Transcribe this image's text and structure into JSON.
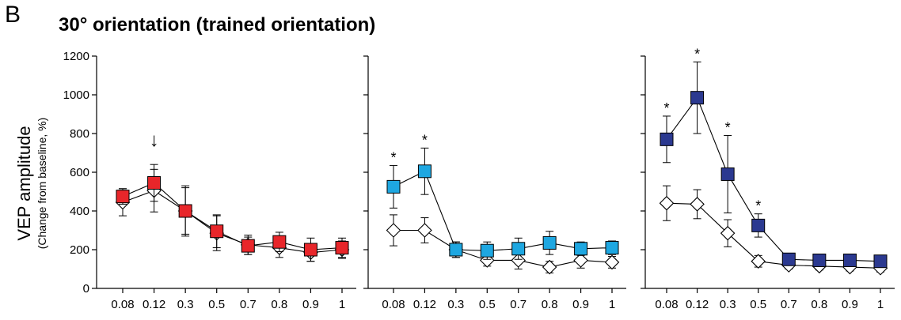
{
  "figure": {
    "panel_letter": "B",
    "title": "30° orientation (trained orientation)",
    "ylabel_main": "VEP amplitude",
    "ylabel_sub": "(Change from baseline, %)"
  },
  "chart_data": [
    {
      "type": "line",
      "title": "30° orientation (trained orientation)",
      "xlabel": "",
      "ylabel": "VEP amplitude (Change from baseline, %)",
      "categories": [
        "0.08",
        "0.12",
        "0.3",
        "0.5",
        "0.7",
        "0.8",
        "0.9",
        "1"
      ],
      "ylim": [
        0,
        1200
      ],
      "yticks": [
        0,
        200,
        400,
        600,
        800,
        1000,
        1200
      ],
      "grid": false,
      "legend": "none",
      "annotations": [
        {
          "text": "↓",
          "category": "0.12"
        }
      ],
      "series": [
        {
          "marker": "diamond",
          "color": "#ffffff",
          "values": [
            445,
            505,
            400,
            285,
            225,
            210,
            185,
            200
          ],
          "errors": [
            70,
            110,
            130,
            90,
            50,
            50,
            45,
            45
          ],
          "significance": []
        },
        {
          "marker": "square",
          "color": "#e8262a",
          "values": [
            475,
            545,
            400,
            295,
            220,
            240,
            200,
            210
          ],
          "errors": [
            40,
            95,
            120,
            85,
            45,
            50,
            60,
            50
          ],
          "significance": []
        }
      ]
    },
    {
      "type": "line",
      "title": "",
      "xlabel": "",
      "ylabel": "",
      "categories": [
        "0.08",
        "0.12",
        "0.3",
        "0.5",
        "0.7",
        "0.8",
        "0.9",
        "1"
      ],
      "ylim": [
        0,
        1200
      ],
      "yticks": [
        0,
        200,
        400,
        600,
        800,
        1000,
        1200
      ],
      "grid": false,
      "legend": "none",
      "annotations": [],
      "series": [
        {
          "marker": "diamond",
          "color": "#ffffff",
          "values": [
            300,
            300,
            200,
            145,
            145,
            110,
            145,
            135
          ],
          "errors": [
            80,
            65,
            40,
            30,
            45,
            30,
            40,
            30
          ],
          "significance": []
        },
        {
          "marker": "square",
          "color": "#1ea7e1",
          "values": [
            525,
            605,
            200,
            195,
            205,
            235,
            205,
            210
          ],
          "errors": [
            110,
            120,
            40,
            45,
            55,
            60,
            35,
            35
          ],
          "significance": [
            "0.08",
            "0.12"
          ]
        }
      ]
    },
    {
      "type": "line",
      "title": "",
      "xlabel": "",
      "ylabel": "",
      "categories": [
        "0.08",
        "0.12",
        "0.3",
        "0.5",
        "0.7",
        "0.8",
        "0.9",
        "1"
      ],
      "ylim": [
        0,
        1200
      ],
      "yticks": [
        0,
        200,
        400,
        600,
        800,
        1000,
        1200
      ],
      "grid": false,
      "legend": "none",
      "annotations": [],
      "series": [
        {
          "marker": "diamond",
          "color": "#ffffff",
          "values": [
            440,
            435,
            285,
            140,
            120,
            115,
            110,
            105
          ],
          "errors": [
            90,
            75,
            70,
            30,
            20,
            20,
            20,
            20
          ],
          "significance": []
        },
        {
          "marker": "square",
          "color": "#2b3990",
          "values": [
            770,
            985,
            590,
            325,
            150,
            145,
            145,
            140
          ],
          "errors": [
            120,
            185,
            200,
            60,
            20,
            20,
            20,
            20
          ],
          "significance": [
            "0.08",
            "0.12",
            "0.3",
            "0.5"
          ]
        }
      ]
    }
  ]
}
